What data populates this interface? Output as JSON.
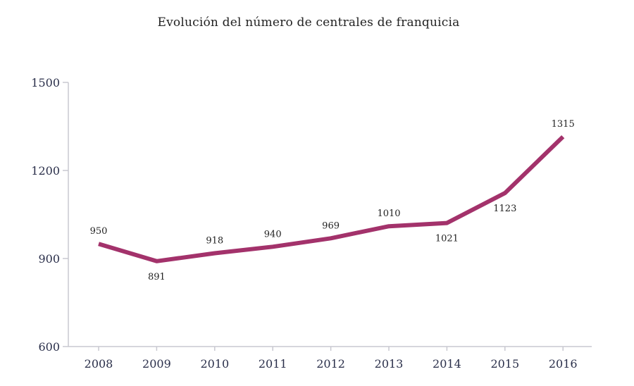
{
  "chart_data": {
    "type": "line",
    "title": "Evolución  del número de centrales de franquicia",
    "xlabel": "",
    "ylabel": "",
    "x": [
      "2008",
      "2009",
      "2010",
      "2011",
      "2012",
      "2013",
      "2014",
      "2015",
      "2016"
    ],
    "series": [
      {
        "values": [
          950,
          891,
          918,
          940,
          969,
          1010,
          1021,
          1123,
          1315
        ],
        "data_labels": [
          "950",
          "891",
          "918",
          "940",
          "969",
          "1010",
          "1021",
          "1123",
          "1315"
        ],
        "label_positions": [
          "above",
          "below",
          "above",
          "above",
          "above",
          "above",
          "below",
          "below",
          "above"
        ],
        "color": "#a3326b"
      }
    ],
    "yticks": [
      600,
      900,
      1200,
      1500
    ],
    "ytick_labels": [
      "600",
      "900",
      "1200",
      "1500"
    ],
    "ylim": [
      600,
      1500
    ],
    "grid": false,
    "axis_color": "#c8c8d0",
    "tick_label_color": "#2a2f4a"
  }
}
